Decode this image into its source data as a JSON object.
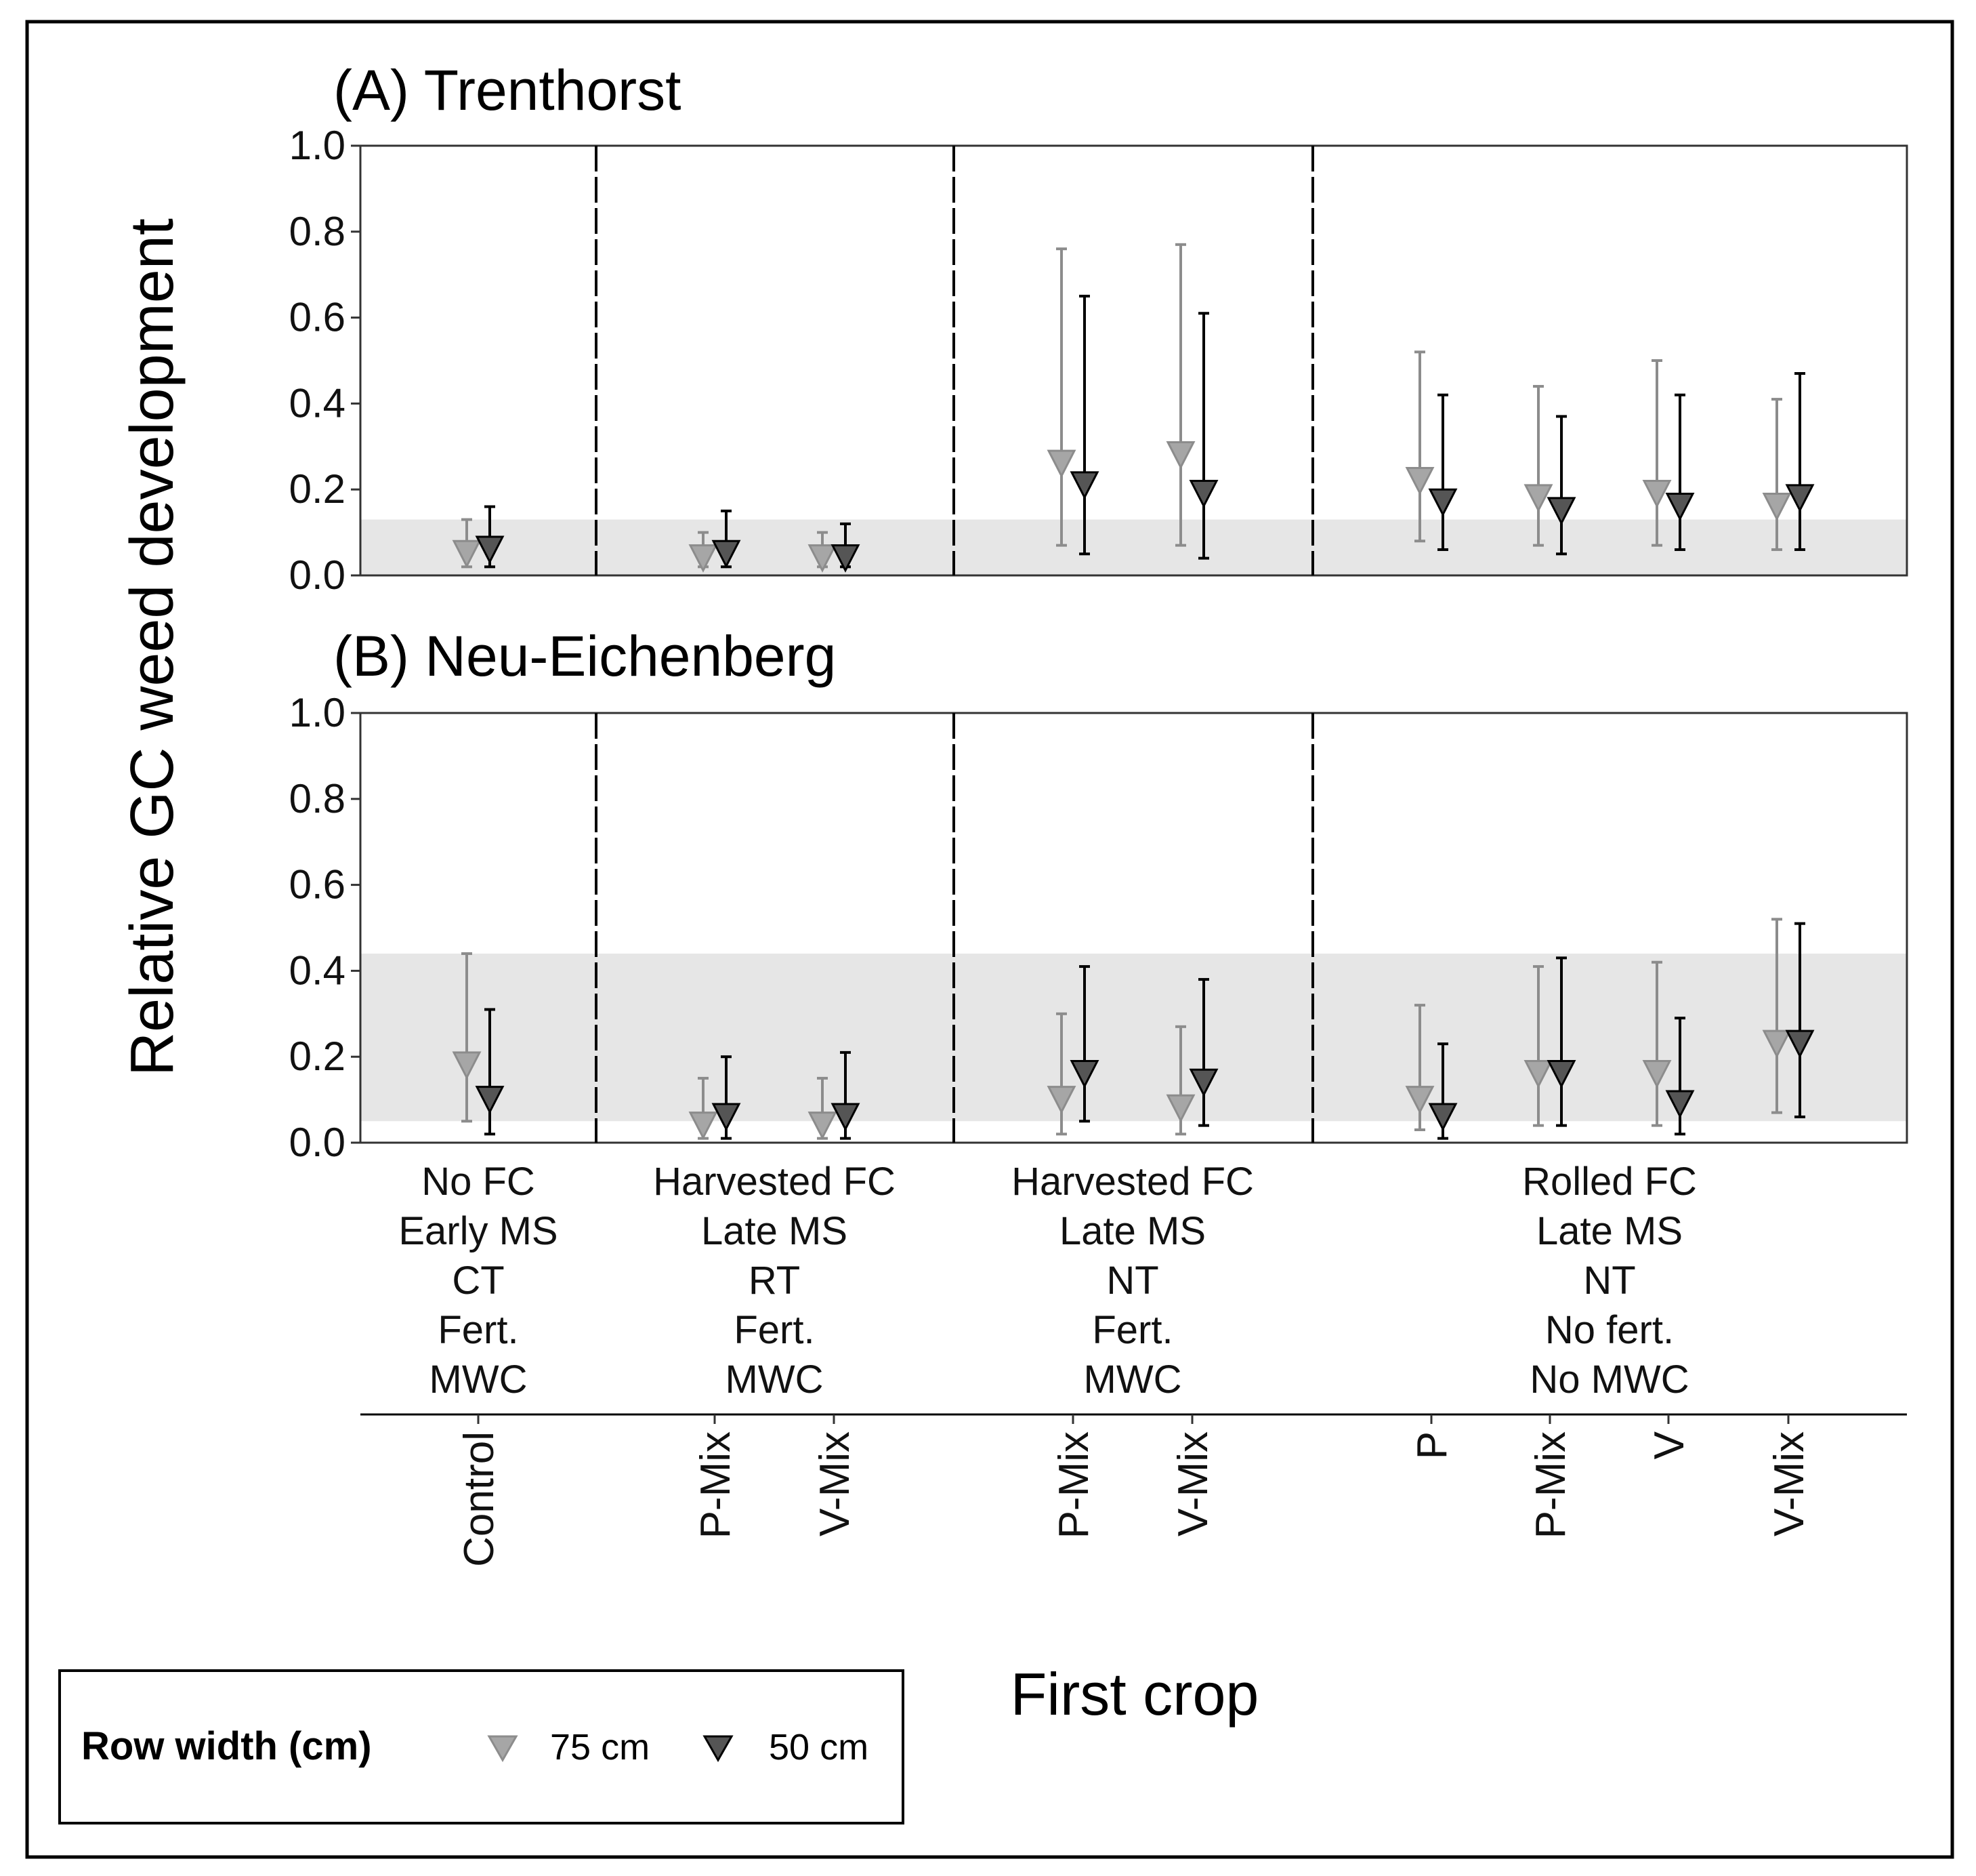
{
  "chart_data": {
    "type": "scatter",
    "ylabel": "Relative GC weed development",
    "xlabel": "First crop",
    "ylim": [
      0,
      1
    ],
    "yticks": [
      "0.0",
      "0.2",
      "0.4",
      "0.6",
      "0.8",
      "1.0"
    ],
    "categories": [
      "Control",
      "P-Mix",
      "V-Mix",
      "P-Mix",
      "V-Mix",
      "P",
      "P-Mix",
      "V",
      "V-Mix"
    ],
    "groups": [
      {
        "name": "No FC Early MS CT Fert. MWC",
        "lines": [
          "No FC",
          "Early MS",
          "CT",
          "Fert.",
          "MWC"
        ],
        "categories": [
          0
        ]
      },
      {
        "name": "Harvested FC Late MS RT Fert. MWC",
        "lines": [
          "Harvested FC",
          "Late MS",
          "RT",
          "Fert.",
          "MWC"
        ],
        "categories": [
          1,
          2
        ]
      },
      {
        "name": "Harvested FC Late MS NT Fert. MWC",
        "lines": [
          "Harvested FC",
          "Late MS",
          "NT",
          "Fert.",
          "MWC"
        ],
        "categories": [
          3,
          4
        ]
      },
      {
        "name": "Rolled FC Late MS NT No fert. No MWC",
        "lines": [
          "Rolled FC",
          "Late MS",
          "NT",
          "No fert.",
          "No MWC"
        ],
        "categories": [
          5,
          6,
          7,
          8
        ]
      }
    ],
    "legend": {
      "title": "Row width (cm)",
      "position": "bottom-left",
      "entries": [
        {
          "label": "75 cm",
          "color": "#a6a6a6",
          "line_color": "#8c8c8c"
        },
        {
          "label": "50 cm",
          "color": "#555555",
          "line_color": "#000000"
        }
      ]
    },
    "panels": [
      {
        "title": "(A) Trenthorst",
        "control_band": [
          0.0,
          0.13
        ],
        "series": [
          {
            "name": "75 cm",
            "values": [
              0.05,
              0.04,
              0.04,
              0.26,
              0.28,
              0.22,
              0.18,
              0.19,
              0.16
            ],
            "lower": [
              0.02,
              0.02,
              0.02,
              0.07,
              0.07,
              0.08,
              0.07,
              0.07,
              0.06
            ],
            "upper": [
              0.13,
              0.1,
              0.1,
              0.76,
              0.77,
              0.52,
              0.44,
              0.5,
              0.41
            ]
          },
          {
            "name": "50 cm",
            "values": [
              0.06,
              0.05,
              0.04,
              0.21,
              0.19,
              0.17,
              0.15,
              0.16,
              0.18
            ],
            "lower": [
              0.02,
              0.02,
              0.02,
              0.05,
              0.04,
              0.06,
              0.05,
              0.06,
              0.06
            ],
            "upper": [
              0.16,
              0.15,
              0.12,
              0.65,
              0.61,
              0.42,
              0.37,
              0.42,
              0.47
            ]
          }
        ]
      },
      {
        "title": "(B) Neu-Eichenberg",
        "control_band": [
          0.05,
          0.44
        ],
        "series": [
          {
            "name": "75 cm",
            "values": [
              0.18,
              0.04,
              0.04,
              0.1,
              0.08,
              0.1,
              0.16,
              0.16,
              0.23
            ],
            "lower": [
              0.05,
              0.01,
              0.01,
              0.02,
              0.02,
              0.03,
              0.04,
              0.04,
              0.07
            ],
            "upper": [
              0.44,
              0.15,
              0.15,
              0.3,
              0.27,
              0.32,
              0.41,
              0.42,
              0.52
            ]
          },
          {
            "name": "50 cm",
            "values": [
              0.1,
              0.06,
              0.06,
              0.16,
              0.14,
              0.06,
              0.16,
              0.09,
              0.23
            ],
            "lower": [
              0.02,
              0.01,
              0.01,
              0.05,
              0.04,
              0.01,
              0.04,
              0.02,
              0.06
            ],
            "upper": [
              0.31,
              0.2,
              0.21,
              0.41,
              0.38,
              0.23,
              0.43,
              0.29,
              0.51
            ]
          }
        ]
      }
    ]
  }
}
